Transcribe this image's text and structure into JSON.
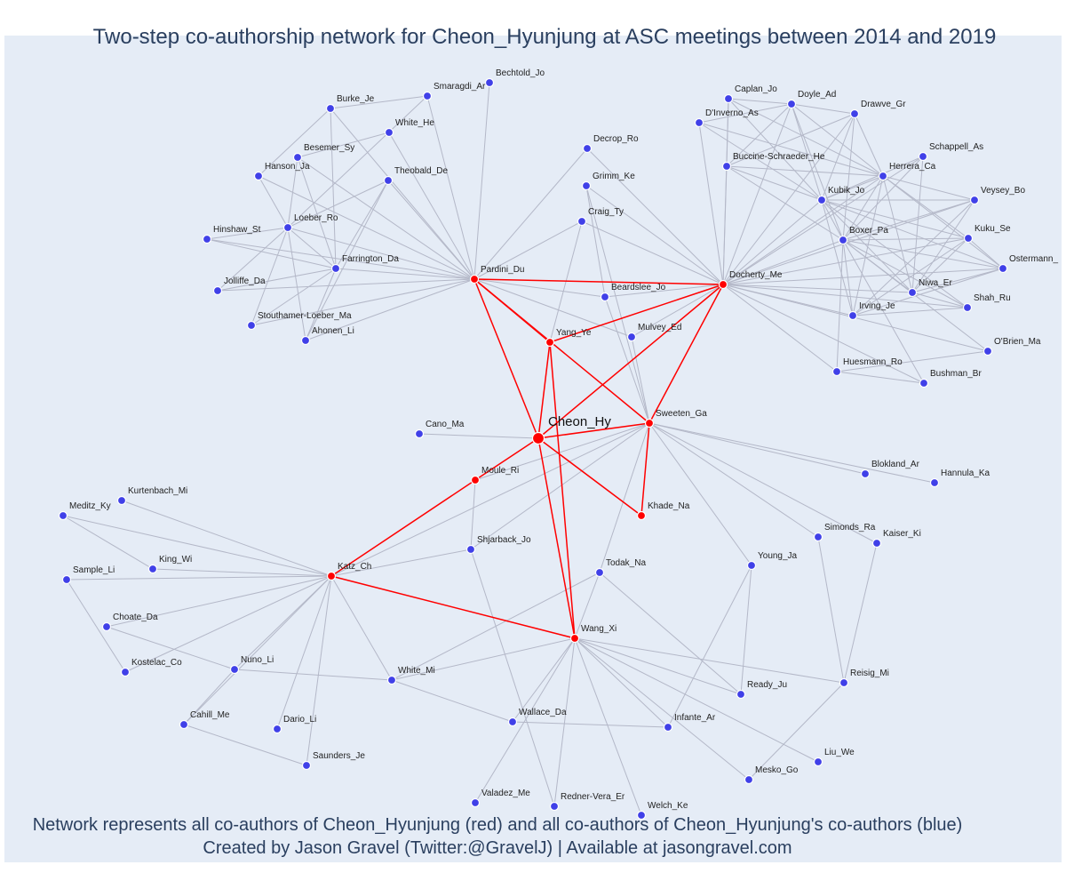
{
  "title": "Two-step co-authorship network for Cheon_Hyunjung at ASC meetings between 2014 and 2019",
  "footer": {
    "line1": "Network represents all co-authors of Cheon_Hyunjung (red) and all co-authors of Cheon_Hyunjung's co-authors (blue)",
    "line2": "Created by Jason Gravel (Twitter:@GravelJ) | Available at jasongravel.com"
  },
  "colors": {
    "red": "#ff0000",
    "blue": "#4040e8",
    "edge": "#b4b8c8",
    "background": "#e5ecf6",
    "text": "#2a3f5f"
  },
  "nodes": {
    "Cheon_Hy": {
      "label": "Cheon_Hy",
      "group": "focal"
    },
    "Pardini_Du": {
      "label": "Pardini_Du",
      "group": "red"
    },
    "Docherty_Me": {
      "label": "Docherty_Me",
      "group": "red"
    },
    "Yang_Ye": {
      "label": "Yang_Ye",
      "group": "red"
    },
    "Sweeten_Ga": {
      "label": "Sweeten_Ga",
      "group": "red"
    },
    "Moule_Ri": {
      "label": "Moule_Ri",
      "group": "red"
    },
    "Khade_Na": {
      "label": "Khade_Na",
      "group": "red"
    },
    "Katz_Ch": {
      "label": "Katz_Ch",
      "group": "red"
    },
    "Wang_Xi": {
      "label": "Wang_Xi",
      "group": "red"
    },
    "Bechtold_Jo": {
      "label": "Bechtold_Jo",
      "group": "blue"
    },
    "Smaragdi_Ar": {
      "label": "Smaragdi_Ar",
      "group": "blue"
    },
    "Burke_Je": {
      "label": "Burke_Je",
      "group": "blue"
    },
    "White_He": {
      "label": "White_He",
      "group": "blue"
    },
    "Besemer_Sy": {
      "label": "Besemer_Sy",
      "group": "blue"
    },
    "Hanson_Ja": {
      "label": "Hanson_Ja",
      "group": "blue"
    },
    "Theobald_De": {
      "label": "Theobald_De",
      "group": "blue"
    },
    "Loeber_Ro": {
      "label": "Loeber_Ro",
      "group": "blue"
    },
    "Hinshaw_St": {
      "label": "Hinshaw_St",
      "group": "blue"
    },
    "Farrington_Da": {
      "label": "Farrington_Da",
      "group": "blue"
    },
    "Jolliffe_Da": {
      "label": "Jolliffe_Da",
      "group": "blue"
    },
    "Stouthamer-Loeber_Ma": {
      "label": "Stouthamer-Loeber_Ma",
      "group": "blue"
    },
    "Ahonen_Li": {
      "label": "Ahonen_Li",
      "group": "blue"
    },
    "Decrop_Ro": {
      "label": "Decrop_Ro",
      "group": "blue"
    },
    "Grimm_Ke": {
      "label": "Grimm_Ke",
      "group": "blue"
    },
    "Craig_Ty": {
      "label": "Craig_Ty",
      "group": "blue"
    },
    "Beardslee_Jo": {
      "label": "Beardslee_Jo",
      "group": "blue"
    },
    "Mulvey_Ed": {
      "label": "Mulvey_Ed",
      "group": "blue"
    },
    "Caplan_Jo": {
      "label": "Caplan_Jo",
      "group": "blue"
    },
    "Doyle_Ad": {
      "label": "Doyle_Ad",
      "group": "blue"
    },
    "D'Inverno_As": {
      "label": "D'Inverno_As",
      "group": "blue"
    },
    "Drawve_Gr": {
      "label": "Drawve_Gr",
      "group": "blue"
    },
    "Schappell_As": {
      "label": "Schappell_As",
      "group": "blue"
    },
    "Buccine-Schraeder_He": {
      "label": "Buccine-Schraeder_He",
      "group": "blue"
    },
    "Herrera_Ca": {
      "label": "Herrera_Ca",
      "group": "blue"
    },
    "Kubik_Jo": {
      "label": "Kubik_Jo",
      "group": "blue"
    },
    "Veysey_Bo": {
      "label": "Veysey_Bo",
      "group": "blue"
    },
    "Boxer_Pa": {
      "label": "Boxer_Pa",
      "group": "blue"
    },
    "Kuku_Se": {
      "label": "Kuku_Se",
      "group": "blue"
    },
    "Ostermann_": {
      "label": "Ostermann_",
      "group": "blue"
    },
    "Niwa_Er": {
      "label": "Niwa_Er",
      "group": "blue"
    },
    "Shah_Ru": {
      "label": "Shah_Ru",
      "group": "blue"
    },
    "Irving_Je": {
      "label": "Irving_Je",
      "group": "blue"
    },
    "O'Brien_Ma": {
      "label": "O'Brien_Ma",
      "group": "blue"
    },
    "Huesmann_Ro": {
      "label": "Huesmann_Ro",
      "group": "blue"
    },
    "Bushman_Br": {
      "label": "Bushman_Br",
      "group": "blue"
    },
    "Cano_Ma": {
      "label": "Cano_Ma",
      "group": "blue"
    },
    "Blokland_Ar": {
      "label": "Blokland_Ar",
      "group": "blue"
    },
    "Hannula_Ka": {
      "label": "Hannula_Ka",
      "group": "blue"
    },
    "Kurtenbach_Mi": {
      "label": "Kurtenbach_Mi",
      "group": "blue"
    },
    "Meditz_Ky": {
      "label": "Meditz_Ky",
      "group": "blue"
    },
    "King_Wi": {
      "label": "King_Wi",
      "group": "blue"
    },
    "Sample_Li": {
      "label": "Sample_Li",
      "group": "blue"
    },
    "Shjarback_Jo": {
      "label": "Shjarback_Jo",
      "group": "blue"
    },
    "Simonds_Ra": {
      "label": "Simonds_Ra",
      "group": "blue"
    },
    "Kaiser_Ki": {
      "label": "Kaiser_Ki",
      "group": "blue"
    },
    "Young_Ja": {
      "label": "Young_Ja",
      "group": "blue"
    },
    "Todak_Na": {
      "label": "Todak_Na",
      "group": "blue"
    },
    "Choate_Da": {
      "label": "Choate_Da",
      "group": "blue"
    },
    "Kostelac_Co": {
      "label": "Kostelac_Co",
      "group": "blue"
    },
    "Nuno_Li": {
      "label": "Nuno_Li",
      "group": "blue"
    },
    "White_Mi": {
      "label": "White_Mi",
      "group": "blue"
    },
    "Cahill_Me": {
      "label": "Cahill_Me",
      "group": "blue"
    },
    "Dario_Li": {
      "label": "Dario_Li",
      "group": "blue"
    },
    "Saunders_Je": {
      "label": "Saunders_Je",
      "group": "blue"
    },
    "Wallace_Da": {
      "label": "Wallace_Da",
      "group": "blue"
    },
    "Infante_Ar": {
      "label": "Infante_Ar",
      "group": "blue"
    },
    "Ready_Ju": {
      "label": "Ready_Ju",
      "group": "blue"
    },
    "Reisig_Mi": {
      "label": "Reisig_Mi",
      "group": "blue"
    },
    "Liu_We": {
      "label": "Liu_We",
      "group": "blue"
    },
    "Mesko_Go": {
      "label": "Mesko_Go",
      "group": "blue"
    },
    "Valadez_Me": {
      "label": "Valadez_Me",
      "group": "blue"
    },
    "Redner-Vera_Er": {
      "label": "Redner-Vera_Er",
      "group": "blue"
    },
    "Welch_Ke": {
      "label": "Welch_Ke",
      "group": "blue"
    }
  },
  "red_edges": [
    [
      "Cheon_Hy",
      "Pardini_Du"
    ],
    [
      "Cheon_Hy",
      "Yang_Ye"
    ],
    [
      "Cheon_Hy",
      "Docherty_Me"
    ],
    [
      "Cheon_Hy",
      "Sweeten_Ga"
    ],
    [
      "Cheon_Hy",
      "Moule_Ri"
    ],
    [
      "Cheon_Hy",
      "Khade_Na"
    ],
    [
      "Cheon_Hy",
      "Wang_Xi"
    ],
    [
      "Pardini_Du",
      "Docherty_Me"
    ],
    [
      "Pardini_Du",
      "Yang_Ye"
    ],
    [
      "Pardini_Du",
      "Sweeten_Ga"
    ],
    [
      "Yang_Ye",
      "Docherty_Me"
    ],
    [
      "Yang_Ye",
      "Wang_Xi"
    ],
    [
      "Docherty_Me",
      "Sweeten_Ga"
    ],
    [
      "Sweeten_Ga",
      "Khade_Na"
    ],
    [
      "Moule_Ri",
      "Katz_Ch"
    ],
    [
      "Katz_Ch",
      "Wang_Xi"
    ]
  ],
  "gray_edges": [
    [
      "Pardini_Du",
      "Bechtold_Jo"
    ],
    [
      "Pardini_Du",
      "Smaragdi_Ar"
    ],
    [
      "Pardini_Du",
      "Burke_Je"
    ],
    [
      "Pardini_Du",
      "White_He"
    ],
    [
      "Pardini_Du",
      "Theobald_De"
    ],
    [
      "Pardini_Du",
      "Loeber_Ro"
    ],
    [
      "Pardini_Du",
      "Hinshaw_St"
    ],
    [
      "Pardini_Du",
      "Farrington_Da"
    ],
    [
      "Pardini_Du",
      "Jolliffe_Da"
    ],
    [
      "Pardini_Du",
      "Stouthamer-Loeber_Ma"
    ],
    [
      "Pardini_Du",
      "Ahonen_Li"
    ],
    [
      "Pardini_Du",
      "Decrop_Ro"
    ],
    [
      "Pardini_Du",
      "Craig_Ty"
    ],
    [
      "Pardini_Du",
      "Beardslee_Jo"
    ],
    [
      "Pardini_Du",
      "Besemer_Sy"
    ],
    [
      "Pardini_Du",
      "Hanson_Ja"
    ],
    [
      "Smaragdi_Ar",
      "Burke_Je"
    ],
    [
      "Smaragdi_Ar",
      "Loeber_Ro"
    ],
    [
      "Burke_Je",
      "Hanson_Ja"
    ],
    [
      "Burke_Je",
      "Farrington_Da"
    ],
    [
      "White_He",
      "Besemer_Sy"
    ],
    [
      "Besemer_Sy",
      "Farrington_Da"
    ],
    [
      "Besemer_Sy",
      "Loeber_Ro"
    ],
    [
      "Hanson_Ja",
      "Loeber_Ro"
    ],
    [
      "Theobald_De",
      "Loeber_Ro"
    ],
    [
      "Theobald_De",
      "Farrington_Da"
    ],
    [
      "Theobald_De",
      "Ahonen_Li"
    ],
    [
      "Loeber_Ro",
      "Hinshaw_St"
    ],
    [
      "Loeber_Ro",
      "Farrington_Da"
    ],
    [
      "Loeber_Ro",
      "Jolliffe_Da"
    ],
    [
      "Loeber_Ro",
      "Stouthamer-Loeber_Ma"
    ],
    [
      "Loeber_Ro",
      "Ahonen_Li"
    ],
    [
      "Farrington_Da",
      "Hinshaw_St"
    ],
    [
      "Farrington_Da",
      "Jolliffe_Da"
    ],
    [
      "Farrington_Da",
      "Stouthamer-Loeber_Ma"
    ],
    [
      "Farrington_Da",
      "Ahonen_Li"
    ],
    [
      "Grimm_Ke",
      "Docherty_Me"
    ],
    [
      "Grimm_Ke",
      "Beardslee_Jo"
    ],
    [
      "Craig_Ty",
      "Docherty_Me"
    ],
    [
      "Craig_Ty",
      "Yang_Ye"
    ],
    [
      "Decrop_Ro",
      "Docherty_Me"
    ],
    [
      "Beardslee_Jo",
      "Docherty_Me"
    ],
    [
      "Beardslee_Jo",
      "Sweeten_Ga"
    ],
    [
      "Mulvey_Ed",
      "Docherty_Me"
    ],
    [
      "Mulvey_Ed",
      "Sweeten_Ga"
    ],
    [
      "Mulvey_Ed",
      "Pardini_Du"
    ],
    [
      "Docherty_Me",
      "Caplan_Jo"
    ],
    [
      "Docherty_Me",
      "Doyle_Ad"
    ],
    [
      "Docherty_Me",
      "D'Inverno_As"
    ],
    [
      "Docherty_Me",
      "Drawve_Gr"
    ],
    [
      "Docherty_Me",
      "Buccine-Schraeder_He"
    ],
    [
      "Docherty_Me",
      "Herrera_Ca"
    ],
    [
      "Docherty_Me",
      "Kubik_Jo"
    ],
    [
      "Docherty_Me",
      "Boxer_Pa"
    ],
    [
      "Docherty_Me",
      "Kuku_Se"
    ],
    [
      "Docherty_Me",
      "Ostermann_"
    ],
    [
      "Docherty_Me",
      "Niwa_Er"
    ],
    [
      "Docherty_Me",
      "Shah_Ru"
    ],
    [
      "Docherty_Me",
      "Irving_Je"
    ],
    [
      "Docherty_Me",
      "O'Brien_Ma"
    ],
    [
      "Docherty_Me",
      "Huesmann_Ro"
    ],
    [
      "Docherty_Me",
      "Bushman_Br"
    ],
    [
      "Docherty_Me",
      "Veysey_Bo"
    ],
    [
      "Docherty_Me",
      "Schappell_As"
    ],
    [
      "Caplan_Jo",
      "Doyle_Ad"
    ],
    [
      "Caplan_Jo",
      "Kubik_Jo"
    ],
    [
      "Caplan_Jo",
      "Herrera_Ca"
    ],
    [
      "Caplan_Jo",
      "Buccine-Schraeder_He"
    ],
    [
      "Doyle_Ad",
      "Drawve_Gr"
    ],
    [
      "Doyle_Ad",
      "Kubik_Jo"
    ],
    [
      "Doyle_Ad",
      "Boxer_Pa"
    ],
    [
      "Doyle_Ad",
      "Herrera_Ca"
    ],
    [
      "Doyle_Ad",
      "D'Inverno_As"
    ],
    [
      "Doyle_Ad",
      "Buccine-Schraeder_He"
    ],
    [
      "D'Inverno_As",
      "Kubik_Jo"
    ],
    [
      "D'Inverno_As",
      "Herrera_Ca"
    ],
    [
      "Drawve_Gr",
      "Kubik_Jo"
    ],
    [
      "Drawve_Gr",
      "Boxer_Pa"
    ],
    [
      "Drawve_Gr",
      "Herrera_Ca"
    ],
    [
      "Drawve_Gr",
      "Buccine-Schraeder_He"
    ],
    [
      "Buccine-Schraeder_He",
      "Herrera_Ca"
    ],
    [
      "Buccine-Schraeder_He",
      "Kubik_Jo"
    ],
    [
      "Buccine-Schraeder_He",
      "Boxer_Pa"
    ],
    [
      "Schappell_As",
      "Boxer_Pa"
    ],
    [
      "Schappell_As",
      "Kubik_Jo"
    ],
    [
      "Schappell_As",
      "Niwa_Er"
    ],
    [
      "Herrera_Ca",
      "Kubik_Jo"
    ],
    [
      "Herrera_Ca",
      "Boxer_Pa"
    ],
    [
      "Herrera_Ca",
      "Veysey_Bo"
    ],
    [
      "Herrera_Ca",
      "Kuku_Se"
    ],
    [
      "Herrera_Ca",
      "Ostermann_"
    ],
    [
      "Herrera_Ca",
      "Irving_Je"
    ],
    [
      "Herrera_Ca",
      "Niwa_Er"
    ],
    [
      "Kubik_Jo",
      "Boxer_Pa"
    ],
    [
      "Kubik_Jo",
      "Veysey_Bo"
    ],
    [
      "Kubik_Jo",
      "Kuku_Se"
    ],
    [
      "Kubik_Jo",
      "Shah_Ru"
    ],
    [
      "Kubik_Jo",
      "Niwa_Er"
    ],
    [
      "Kubik_Jo",
      "Ostermann_"
    ],
    [
      "Kubik_Jo",
      "Irving_Je"
    ],
    [
      "Boxer_Pa",
      "Veysey_Bo"
    ],
    [
      "Boxer_Pa",
      "Kuku_Se"
    ],
    [
      "Boxer_Pa",
      "Ostermann_"
    ],
    [
      "Boxer_Pa",
      "Niwa_Er"
    ],
    [
      "Boxer_Pa",
      "Shah_Ru"
    ],
    [
      "Boxer_Pa",
      "Irving_Je"
    ],
    [
      "Boxer_Pa",
      "Huesmann_Ro"
    ],
    [
      "Boxer_Pa",
      "Bushman_Br"
    ],
    [
      "Boxer_Pa",
      "O'Brien_Ma"
    ],
    [
      "Veysey_Bo",
      "Niwa_Er"
    ],
    [
      "Veysey_Bo",
      "Irving_Je"
    ],
    [
      "Kuku_Se",
      "Niwa_Er"
    ],
    [
      "Kuku_Se",
      "Irving_Je"
    ],
    [
      "Kuku_Se",
      "Ostermann_"
    ],
    [
      "Ostermann_",
      "Niwa_Er"
    ],
    [
      "Ostermann_",
      "Irving_Je"
    ],
    [
      "Niwa_Er",
      "Shah_Ru"
    ],
    [
      "Irving_Je",
      "Shah_Ru"
    ],
    [
      "O'Brien_Ma",
      "Huesmann_Ro"
    ],
    [
      "Huesmann_Ro",
      "Bushman_Br"
    ],
    [
      "Cheon_Hy",
      "Cano_Ma"
    ],
    [
      "Sweeten_Ga",
      "Blokland_Ar"
    ],
    [
      "Sweeten_Ga",
      "Hannula_Ka"
    ],
    [
      "Sweeten_Ga",
      "Simonds_Ra"
    ],
    [
      "Sweeten_Ga",
      "Kaiser_Ki"
    ],
    [
      "Sweeten_Ga",
      "Young_Ja"
    ],
    [
      "Sweeten_Ga",
      "Todak_Na"
    ],
    [
      "Sweeten_Ga",
      "Shjarback_Jo"
    ],
    [
      "Sweeten_Ga",
      "Moule_Ri"
    ],
    [
      "Sweeten_Ga",
      "Grimm_Ke"
    ],
    [
      "Sweeten_Ga",
      "Katz_Ch"
    ],
    [
      "Moule_Ri",
      "Shjarback_Jo"
    ],
    [
      "Shjarback_Jo",
      "Katz_Ch"
    ],
    [
      "Shjarback_Jo",
      "Redner-Vera_Er"
    ],
    [
      "Simonds_Ra",
      "Reisig_Mi"
    ],
    [
      "Kaiser_Ki",
      "Reisig_Mi"
    ],
    [
      "Young_Ja",
      "Ready_Ju"
    ],
    [
      "Young_Ja",
      "Infante_Ar"
    ],
    [
      "Todak_Na",
      "White_Mi"
    ],
    [
      "Todak_Na",
      "Ready_Ju"
    ],
    [
      "Todak_Na",
      "Wang_Xi"
    ],
    [
      "Katz_Ch",
      "Kurtenbach_Mi"
    ],
    [
      "Katz_Ch",
      "Meditz_Ky"
    ],
    [
      "Katz_Ch",
      "King_Wi"
    ],
    [
      "Katz_Ch",
      "Sample_Li"
    ],
    [
      "Katz_Ch",
      "Choate_Da"
    ],
    [
      "Katz_Ch",
      "Kostelac_Co"
    ],
    [
      "Katz_Ch",
      "Nuno_Li"
    ],
    [
      "Katz_Ch",
      "White_Mi"
    ],
    [
      "Katz_Ch",
      "Dario_Li"
    ],
    [
      "Katz_Ch",
      "Saunders_Je"
    ],
    [
      "Katz_Ch",
      "Cahill_Me"
    ],
    [
      "Meditz_Ky",
      "King_Wi"
    ],
    [
      "Sample_Li",
      "Kostelac_Co"
    ],
    [
      "Choate_Da",
      "Nuno_Li"
    ],
    [
      "Nuno_Li",
      "White_Mi"
    ],
    [
      "Nuno_Li",
      "Cahill_Me"
    ],
    [
      "Cahill_Me",
      "Saunders_Je"
    ],
    [
      "White_Mi",
      "Wallace_Da"
    ],
    [
      "White_Mi",
      "Wang_Xi"
    ],
    [
      "Wang_Xi",
      "Wallace_Da"
    ],
    [
      "Wang_Xi",
      "Infante_Ar"
    ],
    [
      "Wang_Xi",
      "Ready_Ju"
    ],
    [
      "Wang_Xi",
      "Reisig_Mi"
    ],
    [
      "Wang_Xi",
      "Liu_We"
    ],
    [
      "Wang_Xi",
      "Mesko_Go"
    ],
    [
      "Wang_Xi",
      "Valadez_Me"
    ],
    [
      "Wang_Xi",
      "Redner-Vera_Er"
    ],
    [
      "Wang_Xi",
      "Welch_Ke"
    ],
    [
      "Wallace_Da",
      "Infante_Ar"
    ],
    [
      "Reisig_Mi",
      "Mesko_Go"
    ]
  ]
}
